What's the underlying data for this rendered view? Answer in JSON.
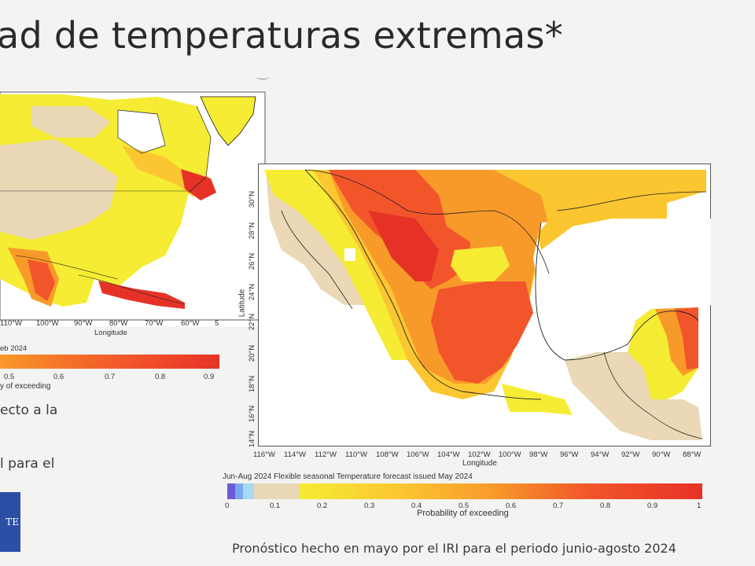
{
  "slide": {
    "title": "ad de temperaturas extremas*",
    "text_line_1": "ecto a la",
    "text_line_2": "l para el",
    "blue_box_text": "TE",
    "caption": "Pronóstico hecho en mayo por el IRI para el periodo junio-agosto 2024"
  },
  "left_map": {
    "lon_ticks": [
      "110°W",
      "100°W",
      "90°W",
      "80°W",
      "70°W",
      "60°W",
      "5"
    ],
    "xlabel": "Longitude",
    "issue_text": "eb 2024",
    "colorbar_ticks": [
      "0.5",
      "0.6",
      "0.7",
      "0.8",
      "0.9"
    ],
    "colorbar_label": "y of exceeding"
  },
  "right_map": {
    "lon_ticks": [
      "116°W",
      "114°W",
      "112°W",
      "110°W",
      "108°W",
      "106°W",
      "104°W",
      "102°W",
      "100°W",
      "98°W",
      "96°W",
      "94°W",
      "92°W",
      "90°W",
      "88°W"
    ],
    "lat_ticks": [
      "30°N",
      "28°N",
      "26°N",
      "24°N",
      "22°N",
      "20°N",
      "18°N",
      "16°N",
      "14°N"
    ],
    "xlabel": "Longitude",
    "ylabel": "Latitude",
    "forecast_title": "Jun-Aug 2024 Flexible seasonal Temperature forecast issued May 2024",
    "colorbar_ticks": [
      "0",
      "0.1",
      "0.2",
      "0.3",
      "0.4",
      "0.5",
      "0.6",
      "0.7",
      "0.8",
      "0.9",
      "1"
    ],
    "colorbar_label": "Probability of exceeding"
  },
  "colors": {
    "low_prob_blue": "#6b5bd6",
    "light_blue": "#a9d7f4",
    "beige": "#ead8b6",
    "yellow": "#f5ec33",
    "light_orange": "#fbc630",
    "orange": "#f89a2a",
    "red_orange": "#f2552a",
    "red": "#e63226"
  }
}
